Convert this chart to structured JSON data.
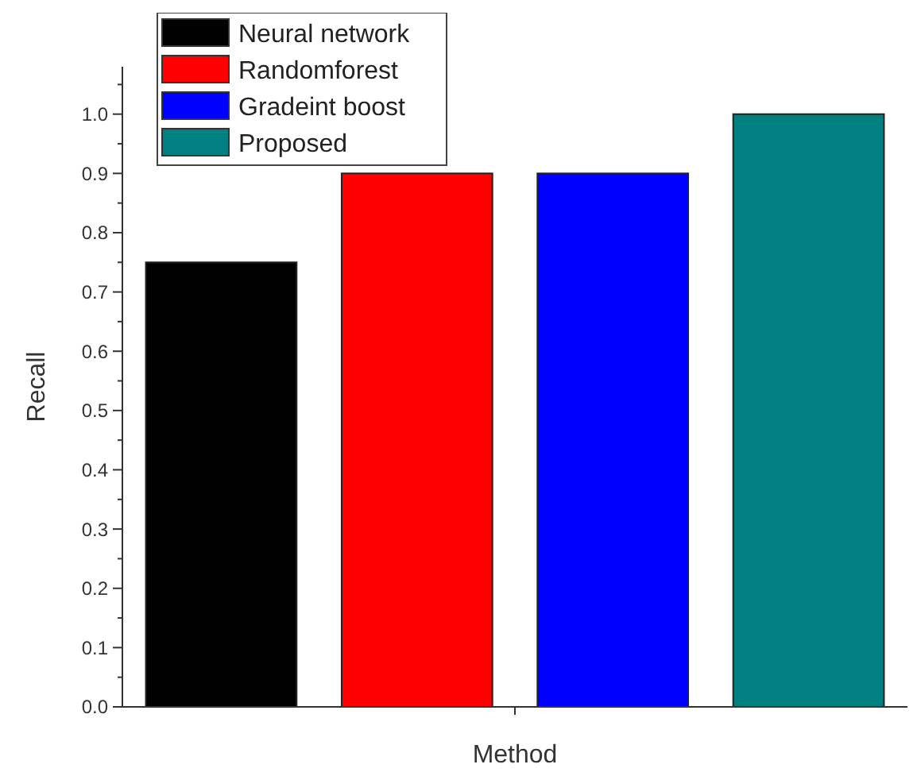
{
  "chart_data": {
    "type": "bar",
    "xlabel": "Method",
    "ylabel": "Recall",
    "categories": [
      null
    ],
    "series": [
      {
        "name": "Neural network",
        "color": "#000000",
        "values": [
          0.75
        ]
      },
      {
        "name": "Randomforest",
        "color": "#ff0000",
        "values": [
          0.9
        ]
      },
      {
        "name": "Gradeint boost",
        "color": "#0000ff",
        "values": [
          0.9
        ]
      },
      {
        "name": "Proposed",
        "color": "#008080",
        "values": [
          1.0
        ]
      }
    ],
    "ylim": [
      0,
      1.08
    ],
    "yticks": [
      {
        "value": 0,
        "label": "0.0"
      },
      {
        "value": 0.05,
        "label": null
      },
      {
        "value": 0.1,
        "label": "0.1"
      },
      {
        "value": 0.15,
        "label": null
      },
      {
        "value": 0.2,
        "label": "0.2"
      },
      {
        "value": 0.25,
        "label": null
      },
      {
        "value": 0.3,
        "label": "0.3"
      },
      {
        "value": 0.35,
        "label": null
      },
      {
        "value": 0.4,
        "label": "0.4"
      },
      {
        "value": 0.45,
        "label": null
      },
      {
        "value": 0.5,
        "label": "0.5"
      },
      {
        "value": 0.55,
        "label": null
      },
      {
        "value": 0.6,
        "label": "0.6"
      },
      {
        "value": 0.65,
        "label": null
      },
      {
        "value": 0.7,
        "label": "0.7"
      },
      {
        "value": 0.75,
        "label": null
      },
      {
        "value": 0.8,
        "label": "0.8"
      },
      {
        "value": 0.85,
        "label": null
      },
      {
        "value": 0.9,
        "label": "0.9"
      },
      {
        "value": 0.95,
        "label": null
      },
      {
        "value": 1.0,
        "label": "1.0"
      },
      {
        "value": 1.05,
        "label": null
      }
    ],
    "legend": "top left",
    "grid": false
  }
}
